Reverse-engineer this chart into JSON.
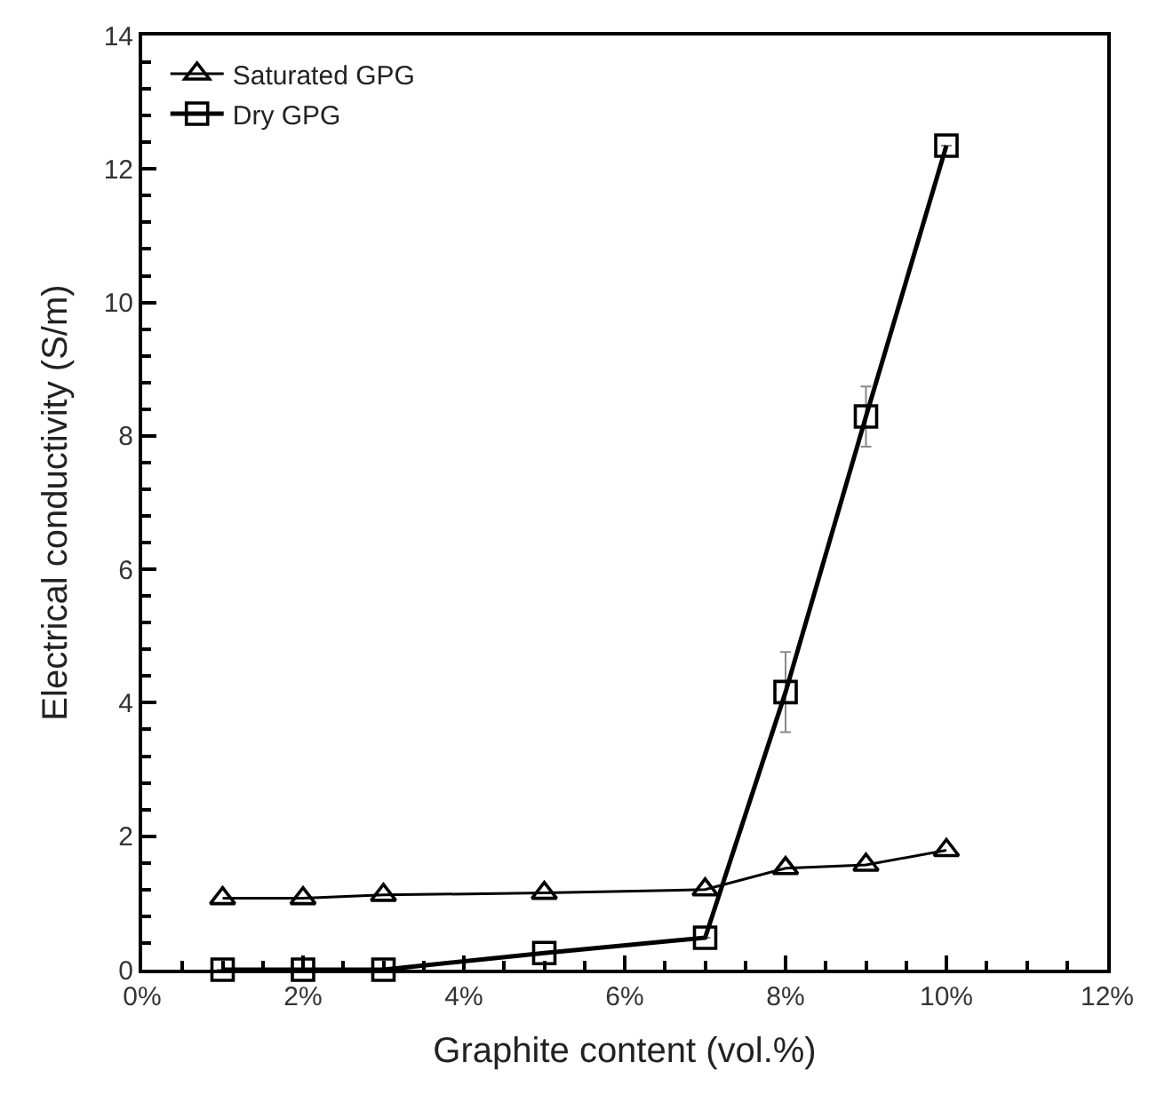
{
  "chart_data": {
    "type": "line",
    "xlabel": "Graphite content (vol.%)",
    "ylabel": "Electrical conductivity (S/m)",
    "xlim": [
      0,
      12
    ],
    "ylim": [
      0,
      14
    ],
    "xticks": [
      {
        "value": 0,
        "label": "0%"
      },
      {
        "value": 2,
        "label": "2%"
      },
      {
        "value": 4,
        "label": "4%"
      },
      {
        "value": 6,
        "label": "6%"
      },
      {
        "value": 8,
        "label": "8%"
      },
      {
        "value": 10,
        "label": "10%"
      },
      {
        "value": 12,
        "label": "12%"
      }
    ],
    "yticks": [
      0,
      2,
      4,
      6,
      8,
      10,
      12,
      14
    ],
    "legend": "top left",
    "series": [
      {
        "name": "Saturated GPG",
        "color": "#000000",
        "marker": "triangle",
        "x": [
          1,
          2,
          3,
          5,
          7,
          8,
          9,
          10
        ],
        "values": [
          1.07,
          1.07,
          1.12,
          1.15,
          1.2,
          1.52,
          1.57,
          1.79
        ]
      },
      {
        "name": "Dry GPG",
        "color": "#000000",
        "marker": "square",
        "x": [
          1,
          2,
          3,
          5,
          7,
          8,
          9,
          10
        ],
        "values": [
          0,
          0,
          0,
          0.25,
          0.48,
          4.16,
          8.29,
          12.35
        ],
        "errors": [
          null,
          null,
          null,
          null,
          null,
          0.6,
          0.45,
          null
        ]
      }
    ]
  }
}
